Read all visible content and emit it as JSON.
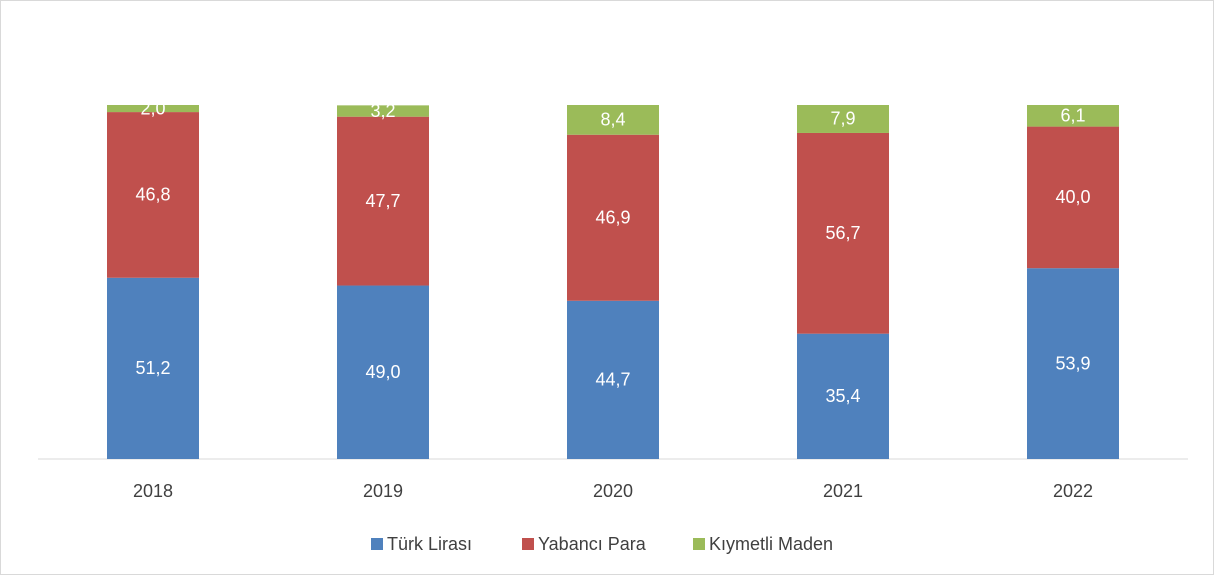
{
  "chart_data": {
    "type": "bar",
    "stacked": true,
    "categories": [
      "2018",
      "2019",
      "2020",
      "2021",
      "2022"
    ],
    "series": [
      {
        "name": "Türk Lirası",
        "color": "#4f81bd",
        "values": [
          51.2,
          49.0,
          44.7,
          35.4,
          53.9
        ],
        "value_labels": [
          "51,2",
          "49,0",
          "44,7",
          "35,4",
          "53,9"
        ]
      },
      {
        "name": "Yabancı Para",
        "color": "#c0504d",
        "values": [
          46.8,
          47.7,
          46.9,
          56.7,
          40.0
        ],
        "value_labels": [
          "46,8",
          "47,7",
          "46,9",
          "56,7",
          "40,0"
        ]
      },
      {
        "name": "Kıymetli Maden",
        "color": "#9bbb59",
        "values": [
          2.0,
          3.2,
          8.4,
          7.9,
          6.1
        ],
        "value_labels": [
          "2,0",
          "3,2",
          "8,4",
          "7,9",
          "6,1"
        ]
      }
    ],
    "ylim": [
      0,
      100
    ],
    "legend": "bottom"
  }
}
